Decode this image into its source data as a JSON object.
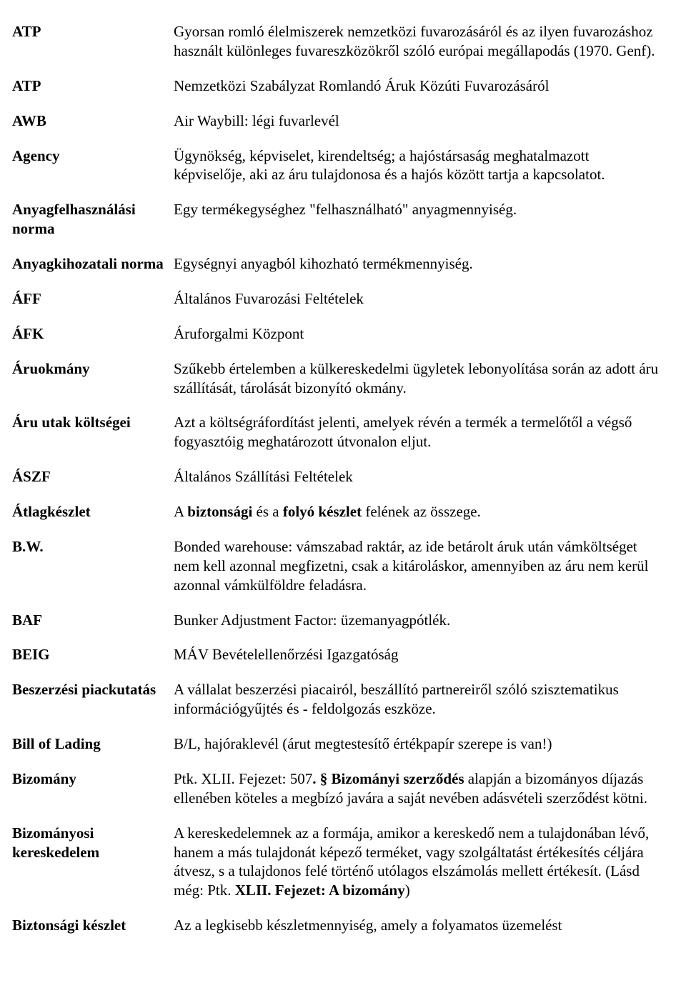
{
  "entries": [
    {
      "term": "ATP",
      "def": [
        {
          "t": "Gyorsan romló élelmiszerek nemzetközi fuvarozásáról és az ilyen fuvarozáshoz használt különleges fuvareszközökről szóló európai megállapodás (1970. Genf)."
        }
      ]
    },
    {
      "term": "ATP",
      "def": [
        {
          "t": "Nemzetközi Szabályzat Romlandó Áruk Közúti Fuvarozásáról"
        }
      ]
    },
    {
      "term": "AWB",
      "def": [
        {
          "t": "Air Waybill: légi fuvarlevél"
        }
      ]
    },
    {
      "term": "Agency",
      "def": [
        {
          "t": "Ügynökség, képviselet, kirendeltség; a hajóstársaság meghatalmazott képviselője, aki az áru tulajdonosa és a hajós között tartja a kapcsolatot."
        }
      ]
    },
    {
      "term": "Anyagfelhasználási norma",
      "def": [
        {
          "t": "Egy termékegységhez \"felhasználható\" anyagmennyiség."
        }
      ]
    },
    {
      "term": "Anyagkihozatali norma",
      "def": [
        {
          "t": "Egységnyi anyagból kihozható termékmennyiség."
        }
      ]
    },
    {
      "term": "ÁFF",
      "def": [
        {
          "t": "Általános Fuvarozási Feltételek"
        }
      ]
    },
    {
      "term": "ÁFK",
      "def": [
        {
          "t": "Áruforgalmi Központ"
        }
      ]
    },
    {
      "term": "Áruokmány",
      "def": [
        {
          "t": "Szűkebb értelemben a külkereskedelmi ügyletek lebonyolítása során az adott áru szállítását, tárolását bizonyító okmány."
        }
      ]
    },
    {
      "term": "Áru utak költségei",
      "def": [
        {
          "t": "Azt a költségráfordítást jelenti, amelyek révén a termék a termelőtől a végső fogyasztóig meghatározott útvonalon eljut."
        }
      ]
    },
    {
      "term": "ÁSZF",
      "def": [
        {
          "t": "Általános Szállítási Feltételek"
        }
      ]
    },
    {
      "term": "Átlagkészlet",
      "def": [
        {
          "t": "A "
        },
        {
          "t": "biztonsági",
          "b": true
        },
        {
          "t": " és a "
        },
        {
          "t": "folyó készlet",
          "b": true
        },
        {
          "t": " felének az összege."
        }
      ]
    },
    {
      "term": "B.W.",
      "def": [
        {
          "t": "Bonded warehouse: vámszabad raktár, az ide betárolt áruk után vámköltséget nem kell azonnal megfizetni, csak a kitároláskor, amennyiben az áru nem kerül azonnal vámkülföldre feladásra."
        }
      ]
    },
    {
      "term": "BAF",
      "def": [
        {
          "t": "Bunker Adjustment Factor: üzemanyagpótlék."
        }
      ]
    },
    {
      "term": "BEIG",
      "def": [
        {
          "t": "MÁV Bevételellenőrzési Igazgatóság"
        }
      ]
    },
    {
      "term": "Beszerzési piackutatás",
      "def": [
        {
          "t": "A vállalat beszerzési piacairól, beszállító partnereiről szóló szisztematikus információgyűjtés és - feldolgozás eszköze."
        }
      ]
    },
    {
      "term": "Bill of Lading",
      "def": [
        {
          "t": "B/L, hajóraklevél (árut megtestesítő értékpapír szerepe is van!)"
        }
      ]
    },
    {
      "term": "Bizomány",
      "def": [
        {
          "t": "Ptk. XLII. Fejezet: 507"
        },
        {
          "t": ". § Bizományi szerződés",
          "b": true
        },
        {
          "t": " alapján a bizományos díjazás ellenében köteles a megbízó javára a saját nevében adásvételi szerződést kötni."
        }
      ]
    },
    {
      "term": "Bizományosi kereskedelem",
      "def": [
        {
          "t": "A kereskedelemnek az a formája, amikor a kereskedő nem a tulajdonában lévő, hanem a más tulajdonát képező terméket, vagy szolgáltatást értékesítés céljára átvesz, s a tulajdonos felé történő utólagos elszámolás mellett értékesít. (Lásd még: Ptk. "
        },
        {
          "t": "XLII. Fejezet: A bizomány",
          "b": true
        },
        {
          "t": ")"
        }
      ]
    },
    {
      "term": "Biztonsági készlet",
      "def": [
        {
          "t": "Az a legkisebb készletmennyiség, amely a folyamatos üzemelést"
        }
      ]
    }
  ]
}
